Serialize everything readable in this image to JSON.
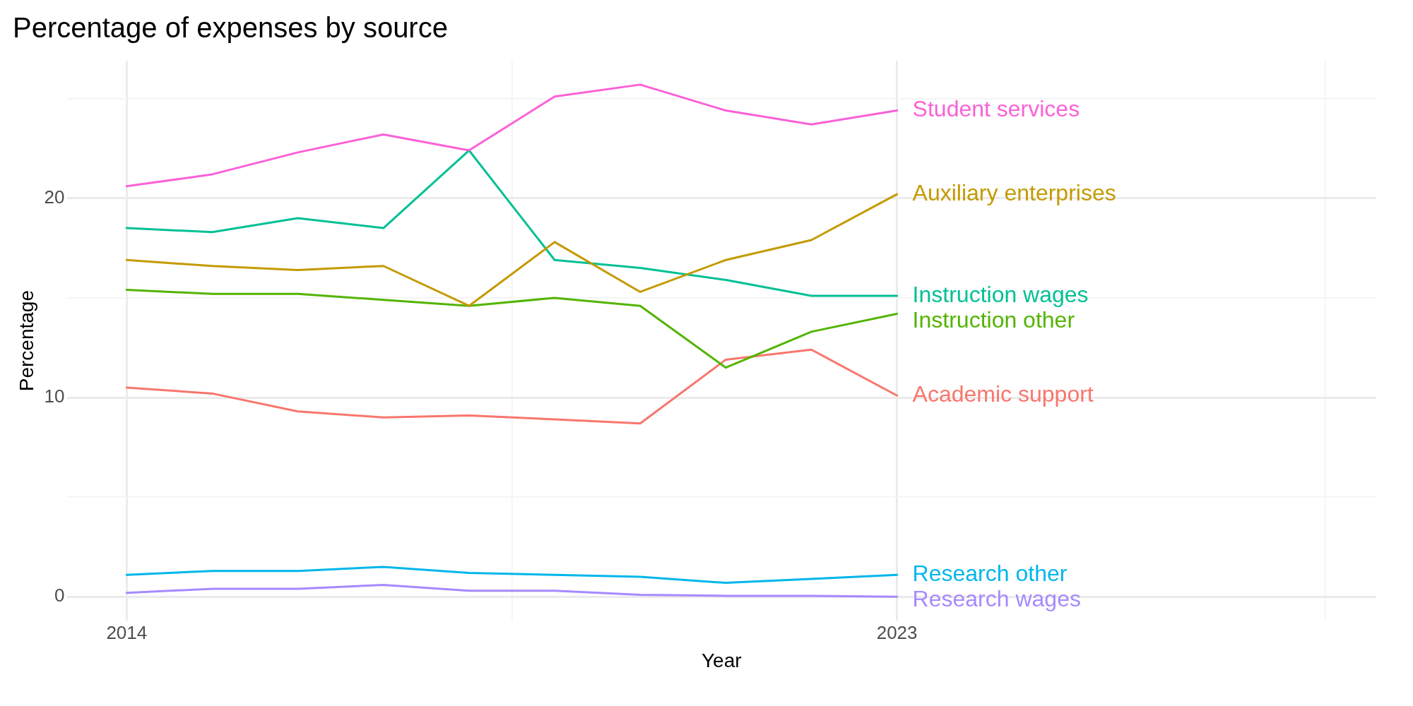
{
  "chart_data": {
    "type": "line",
    "title": "Percentage of expenses by source",
    "xlabel": "Year",
    "ylabel": "Percentage",
    "x": [
      2014,
      2015,
      2016,
      2017,
      2018,
      2019,
      2020,
      2021,
      2022,
      2023
    ],
    "xlim": [
      2013.3,
      2028.6
    ],
    "xticks": [
      2014,
      {
        "value": 2018.5,
        "label": null
      },
      2023,
      {
        "value": 2028,
        "label": null
      }
    ],
    "ylim": [
      -1.2,
      26.9
    ],
    "yticks": [
      0,
      {
        "value": 5,
        "label": null
      },
      10,
      {
        "value": 15,
        "label": null
      },
      20,
      {
        "value": 25,
        "label": null
      }
    ],
    "grid": true,
    "legend": false,
    "marker": "none",
    "line_style": "solid",
    "series": [
      {
        "name": "Student services",
        "color": "#fb61d7",
        "values": [
          20.6,
          21.2,
          22.3,
          23.2,
          22.4,
          25.1,
          25.7,
          24.4,
          23.7,
          24.4
        ]
      },
      {
        "name": "Auxiliary enterprises",
        "color": "#c49a00",
        "values": [
          16.9,
          16.6,
          16.4,
          16.6,
          14.6,
          17.8,
          15.3,
          16.9,
          17.9,
          20.2
        ]
      },
      {
        "name": "Instruction wages",
        "color": "#00c094",
        "values": [
          18.5,
          18.3,
          19.0,
          18.5,
          22.4,
          16.9,
          16.5,
          15.9,
          15.1,
          15.1
        ]
      },
      {
        "name": "Instruction other",
        "color": "#53b400",
        "values": [
          15.4,
          15.2,
          15.2,
          14.9,
          14.6,
          15.0,
          14.6,
          11.5,
          13.3,
          14.2
        ]
      },
      {
        "name": "Academic support",
        "color": "#f8766d",
        "values": [
          10.5,
          10.2,
          9.3,
          9.0,
          9.1,
          8.9,
          8.7,
          11.9,
          12.4,
          10.1
        ]
      },
      {
        "name": "Research other",
        "color": "#00b6eb",
        "values": [
          1.1,
          1.3,
          1.3,
          1.5,
          1.2,
          1.1,
          1.0,
          0.7,
          0.9,
          1.1
        ]
      },
      {
        "name": "Research wages",
        "color": "#a58aff",
        "values": [
          0.2,
          0.4,
          0.4,
          0.6,
          0.3,
          0.3,
          0.1,
          0.05,
          0.05,
          0.0
        ]
      }
    ]
  }
}
